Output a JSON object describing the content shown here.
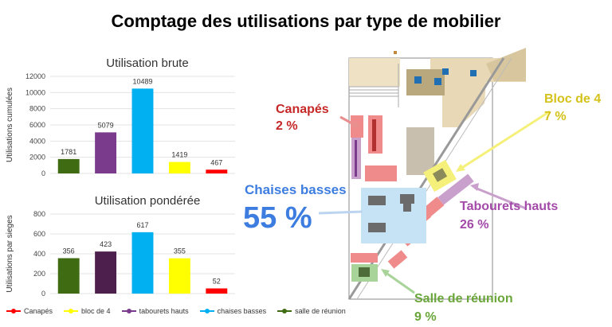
{
  "title": "Comptage des utilisations par type de mobilier",
  "colors": {
    "canapes": "#ff0000",
    "bloc4": "#ffff00",
    "tabourets_brut": "#7a3b8c",
    "tabourets_pond": "#4d1f4d",
    "chaises": "#00b0f0",
    "reunion": "#3f6b12",
    "callout_red": "#c62828",
    "callout_yellow": "#d4c21a",
    "callout_purple": "#a34aa8",
    "callout_blue": "#3d7de0",
    "callout_green": "#6aa63a"
  },
  "chart_data": [
    {
      "type": "bar",
      "title": "Utilisation brute",
      "ylabel": "Utilisations cumulées",
      "ylim": [
        0,
        12000
      ],
      "yticks": [
        "0",
        "2000",
        "4000",
        "6000",
        "8000",
        "10000",
        "12000"
      ],
      "categories": [
        "salle de réunion",
        "tabourets hauts",
        "chaises basses",
        "bloc de 4",
        "Canapés"
      ],
      "values": [
        1781,
        5079,
        10489,
        1419,
        467
      ],
      "labels": [
        "1781",
        "5079",
        "10489",
        "1419",
        "467"
      ]
    },
    {
      "type": "bar",
      "title": "Utilisation pondérée",
      "ylabel": "Utilisations par sieges",
      "ylim": [
        0,
        800
      ],
      "yticks": [
        "0",
        "200",
        "400",
        "600",
        "800"
      ],
      "categories": [
        "salle de réunion",
        "tabourets hauts",
        "chaises basses",
        "bloc de 4",
        "Canapés"
      ],
      "values": [
        356,
        423,
        617,
        355,
        52
      ],
      "labels": [
        "356",
        "423",
        "617",
        "355",
        "52"
      ]
    }
  ],
  "legend": [
    {
      "label": "Canapés",
      "color": "#ff0000"
    },
    {
      "label": "bloc de 4",
      "color": "#ffff00"
    },
    {
      "label": "tabourets hauts",
      "color": "#7a3b8c"
    },
    {
      "label": "chaises basses",
      "color": "#00b0f0"
    },
    {
      "label": "salle de réunion",
      "color": "#3f6b12"
    }
  ],
  "callouts": {
    "canapes_name": "Canapés",
    "canapes_pct": "2 %",
    "chaises_name": "Chaises basses",
    "chaises_pct": "55 %",
    "bloc_name": "Bloc de 4",
    "bloc_pct": "7 %",
    "tabourets_name": "Tabourets hauts",
    "tabourets_pct": "26 %",
    "salle_name": "Salle de réunion",
    "salle_pct": "9 %"
  }
}
